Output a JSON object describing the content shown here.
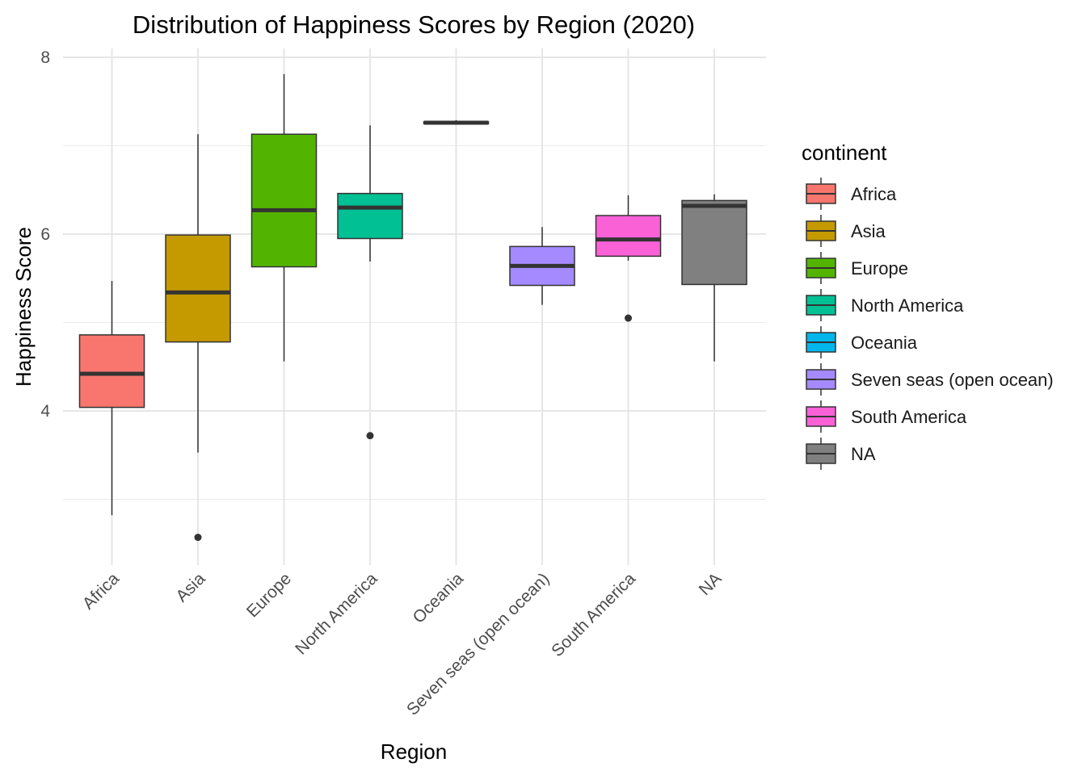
{
  "chart_data": {
    "type": "boxplot",
    "title": "Distribution of Happiness Scores by Region (2020)",
    "xlabel": "Region",
    "ylabel": "Happiness Score",
    "ylim": [
      2.4,
      8.15
    ],
    "y_ticks": [
      4,
      6,
      8
    ],
    "grid": true,
    "legend_title": "continent",
    "legend_position": "right",
    "categories": [
      "Africa",
      "Asia",
      "Europe",
      "North America",
      "Oceania",
      "Seven seas (open ocean)",
      "South America",
      "NA"
    ],
    "series": [
      {
        "category": "Africa",
        "color": "#F8766D",
        "min": 2.82,
        "q1": 4.04,
        "median": 4.42,
        "q3": 4.86,
        "max": 5.47,
        "outliers": []
      },
      {
        "category": "Asia",
        "color": "#C49A00",
        "min": 3.53,
        "q1": 4.78,
        "median": 5.34,
        "q3": 5.99,
        "max": 7.13,
        "outliers": [
          2.57
        ]
      },
      {
        "category": "Europe",
        "color": "#53B400",
        "min": 4.56,
        "q1": 5.63,
        "median": 6.27,
        "q3": 7.13,
        "max": 7.81,
        "outliers": []
      },
      {
        "category": "North America",
        "color": "#00C094",
        "min": 5.69,
        "q1": 5.95,
        "median": 6.3,
        "q3": 6.46,
        "max": 7.23,
        "outliers": [
          3.72
        ]
      },
      {
        "category": "Oceania",
        "color": "#00B6EB",
        "min": 7.24,
        "q1": 7.25,
        "median": 7.26,
        "q3": 7.27,
        "max": 7.29,
        "outliers": []
      },
      {
        "category": "Seven seas (open ocean)",
        "color": "#A58AFF",
        "min": 5.2,
        "q1": 5.42,
        "median": 5.64,
        "q3": 5.86,
        "max": 6.08,
        "outliers": []
      },
      {
        "category": "South America",
        "color": "#FB61D7",
        "min": 5.7,
        "q1": 5.75,
        "median": 5.94,
        "q3": 6.21,
        "max": 6.44,
        "outliers": [
          5.05
        ]
      },
      {
        "category": "NA",
        "color": "#808080",
        "min": 4.56,
        "q1": 5.43,
        "median": 6.32,
        "q3": 6.38,
        "max": 6.45,
        "outliers": []
      }
    ]
  }
}
